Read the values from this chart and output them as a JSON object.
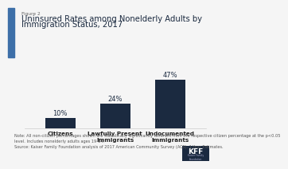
{
  "title_small": "Figure 2",
  "title_line1": "Uninsured Rates among Nonelderly Adults by",
  "title_line2": "Immigration Status, 2017",
  "categories": [
    "Citizens",
    "Lawfully Present\nImmigrants",
    "Undocumented\nImmigrants"
  ],
  "values": [
    10,
    24,
    47
  ],
  "bar_color": "#1b2a40",
  "label_color": "#1b2a40",
  "background_color": "#f5f5f5",
  "note_text": "Note: All non-citizen percentages shown are statistically significantly different from the respective citizen percentage at the p<0.05\nlevel. Includes nonelderly adults ages 19-64.\nSource: Kaiser Family Foundation analysis of 2017 American Community Survey (ACS), 1-Year Estimates.",
  "ylim": [
    0,
    55
  ],
  "bar_width": 0.55,
  "accent_color": "#3d6fa8",
  "title_fontsize": 7.2,
  "label_fontsize": 6.0,
  "note_fontsize": 3.6,
  "cat_fontsize": 5.2,
  "title_small_fontsize": 4.2
}
